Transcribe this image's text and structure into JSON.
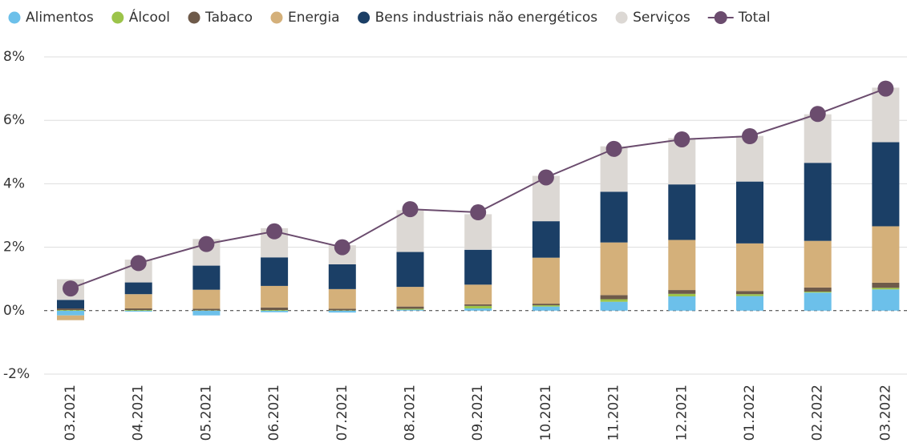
{
  "chart_data": {
    "type": "bar",
    "stacked": true,
    "categories": [
      "03.2021",
      "04.2021",
      "05.2021",
      "06.2021",
      "07.2021",
      "08.2021",
      "09.2021",
      "10.2021",
      "11.2021",
      "12.2021",
      "01.2022",
      "02.2022",
      "03.2022"
    ],
    "series": [
      {
        "name": "Alimentos",
        "color": "#6cc0ea",
        "values": [
          -0.15,
          -0.03,
          -0.15,
          -0.05,
          -0.06,
          0.03,
          0.07,
          0.13,
          0.28,
          0.45,
          0.46,
          0.57,
          0.67
        ]
      },
      {
        "name": "Álcool",
        "color": "#9cc44a",
        "values": [
          0.02,
          0.02,
          0.01,
          0.02,
          0.01,
          0.03,
          0.08,
          0.04,
          0.08,
          0.08,
          0.06,
          0.03,
          0.05
        ]
      },
      {
        "name": "Tabaco",
        "color": "#6e5a4a",
        "values": [
          0.05,
          0.05,
          0.05,
          0.08,
          0.05,
          0.07,
          0.05,
          0.05,
          0.13,
          0.12,
          0.1,
          0.13,
          0.16
        ]
      },
      {
        "name": "Energia",
        "color": "#d4b07a",
        "values": [
          -0.15,
          0.45,
          0.6,
          0.68,
          0.62,
          0.62,
          0.62,
          1.45,
          1.66,
          1.58,
          1.5,
          1.47,
          1.78
        ]
      },
      {
        "name": "Bens industriais não energéticos",
        "color": "#1b3f66",
        "values": [
          0.27,
          0.37,
          0.76,
          0.9,
          0.78,
          1.1,
          1.1,
          1.15,
          1.6,
          1.75,
          1.95,
          2.46,
          2.65
        ]
      },
      {
        "name": "Serviços",
        "color": "#dcd8d4",
        "values": [
          0.65,
          0.72,
          0.84,
          0.92,
          0.6,
          1.32,
          1.12,
          1.43,
          1.43,
          1.46,
          1.44,
          1.53,
          1.72
        ]
      },
      {
        "name": "Total",
        "color": "#6b4c6e",
        "type": "line",
        "values": [
          0.7,
          1.5,
          2.1,
          2.5,
          2.0,
          3.2,
          3.1,
          4.2,
          5.1,
          5.4,
          5.5,
          6.2,
          7.0
        ]
      }
    ],
    "ylim": [
      -2,
      8
    ],
    "yticks": [
      {
        "value": -2,
        "label": "-2%"
      },
      {
        "value": 0,
        "label": "0%"
      },
      {
        "value": 2,
        "label": "2%"
      },
      {
        "value": 4,
        "label": "4%"
      },
      {
        "value": 6,
        "label": "6%"
      },
      {
        "value": 8,
        "label": "8%"
      }
    ],
    "grid": true,
    "legend": "top"
  }
}
